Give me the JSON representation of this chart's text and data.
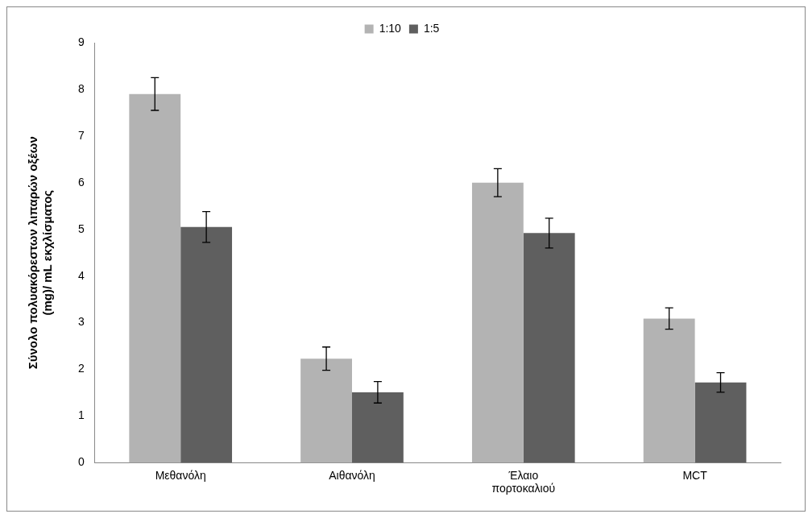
{
  "chart_data": {
    "type": "bar",
    "ylabel": "Σύνολο πολυακόρεστων λιπαρών οξέων (mg)/ mL εκχλίσματος",
    "categories": [
      "Μεθανόλη",
      "Αιθανόλη",
      "Έλαιο πορτοκαλιού",
      "MCT"
    ],
    "series": [
      {
        "name": "1:10",
        "color": "#b3b3b3",
        "values": [
          7.9,
          2.23,
          6.0,
          3.09
        ],
        "errors": [
          0.35,
          0.25,
          0.3,
          0.23
        ]
      },
      {
        "name": "1:5",
        "color": "#5f5f5f",
        "values": [
          5.05,
          1.51,
          4.92,
          1.72
        ],
        "errors": [
          0.33,
          0.23,
          0.32,
          0.21
        ]
      }
    ],
    "ylim": [
      0,
      9
    ],
    "yticks": [
      0,
      1,
      2,
      3,
      4,
      5,
      6,
      7,
      8,
      9
    ],
    "grid": false,
    "legend": "top"
  }
}
